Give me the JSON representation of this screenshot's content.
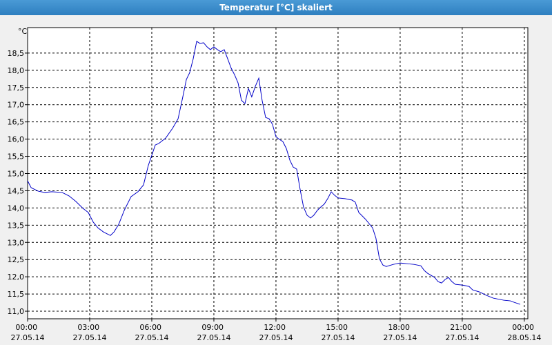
{
  "chart_data": {
    "type": "line",
    "title": "Temperatur [°C] skaliert",
    "y_label": "°C",
    "x": [
      0,
      0.17,
      0.5,
      0.83,
      1.17,
      1.67,
      2,
      2.33,
      2.67,
      2.93,
      3.17,
      3.4,
      3.67,
      4,
      4.17,
      4.4,
      4.67,
      5,
      5.33,
      5.6,
      5.83,
      6,
      6.17,
      6.33,
      6.67,
      7,
      7.27,
      7.5,
      7.67,
      7.83,
      8,
      8.17,
      8.33,
      8.5,
      8.67,
      8.83,
      9,
      9.17,
      9.33,
      9.5,
      9.67,
      9.83,
      10,
      10.17,
      10.33,
      10.5,
      10.67,
      10.83,
      11,
      11.17,
      11.33,
      11.5,
      11.67,
      11.83,
      12,
      12.17,
      12.33,
      12.5,
      12.67,
      12.83,
      13,
      13.17,
      13.33,
      13.5,
      13.67,
      13.83,
      14,
      14.17,
      14.33,
      14.5,
      14.67,
      14.83,
      15,
      15.33,
      15.67,
      15.83,
      16,
      16.33,
      16.67,
      16.83,
      17,
      17.17,
      17.33,
      17.67,
      18,
      18.33,
      18.67,
      19,
      19.17,
      19.33,
      19.67,
      19.83,
      20,
      20.17,
      20.33,
      20.5,
      20.67,
      21,
      21.33,
      21.5,
      21.83,
      22.17,
      22.5,
      23,
      23.33,
      23.5,
      23.8
    ],
    "series": [
      {
        "name": "Temperatur",
        "color": "#0000c8",
        "values": [
          14.79,
          14.59,
          14.49,
          14.45,
          14.47,
          14.45,
          14.35,
          14.19,
          13.99,
          13.87,
          13.59,
          13.42,
          13.3,
          13.2,
          13.3,
          13.52,
          13.93,
          14.33,
          14.47,
          14.67,
          15.23,
          15.53,
          15.83,
          15.87,
          16.03,
          16.31,
          16.59,
          17.23,
          17.73,
          17.93,
          18.33,
          18.84,
          18.78,
          18.8,
          18.68,
          18.6,
          18.68,
          18.6,
          18.54,
          18.6,
          18.33,
          18.07,
          17.87,
          17.63,
          17.13,
          17.03,
          17.47,
          17.23,
          17.53,
          17.77,
          17.13,
          16.63,
          16.59,
          16.43,
          16.07,
          15.99,
          15.93,
          15.73,
          15.39,
          15.19,
          15.13,
          14.53,
          14.03,
          13.79,
          13.71,
          13.79,
          13.93,
          14.03,
          14.11,
          14.27,
          14.47,
          14.37,
          14.29,
          14.27,
          14.23,
          14.17,
          13.87,
          13.67,
          13.42,
          13.12,
          12.52,
          12.34,
          12.3,
          12.36,
          12.4,
          12.38,
          12.36,
          12.32,
          12.18,
          12.1,
          11.98,
          11.86,
          11.82,
          11.92,
          11.98,
          11.86,
          11.78,
          11.76,
          11.72,
          11.62,
          11.56,
          11.46,
          11.38,
          11.32,
          11.3,
          11.26,
          11.2
        ]
      }
    ],
    "xlim": [
      0,
      24.17
    ],
    "xticks": [
      {
        "value": 0,
        "label": "00:00 27.05.14"
      },
      {
        "value": 3,
        "label": "03:00 27.05.14"
      },
      {
        "value": 6,
        "label": "06:00 27.05.14"
      },
      {
        "value": 9,
        "label": "09:00 27.05.14"
      },
      {
        "value": 12,
        "label": "12:00 27.05.14"
      },
      {
        "value": 15,
        "label": "15:00 27.05.14"
      },
      {
        "value": 18,
        "label": "18:00 27.05.14"
      },
      {
        "value": 21,
        "label": "21:00 27.05.14"
      },
      {
        "value": 24,
        "label": "00:00 28.05.14"
      }
    ],
    "ylim": [
      10.78,
      19.24
    ],
    "yticks": [
      {
        "value": 11,
        "label": "11,0"
      },
      {
        "value": 11.5,
        "label": "11,5"
      },
      {
        "value": 12,
        "label": "12,0"
      },
      {
        "value": 12.5,
        "label": "12,5"
      },
      {
        "value": 13,
        "label": "13,0"
      },
      {
        "value": 13.5,
        "label": "13,5"
      },
      {
        "value": 14,
        "label": "14,0"
      },
      {
        "value": 14.5,
        "label": "14,5"
      },
      {
        "value": 15,
        "label": "15,0"
      },
      {
        "value": 15.5,
        "label": "15,5"
      },
      {
        "value": 16,
        "label": "16,0"
      },
      {
        "value": 16.5,
        "label": "16,5"
      },
      {
        "value": 17,
        "label": "17,0"
      },
      {
        "value": 17.5,
        "label": "17,5"
      },
      {
        "value": 18,
        "label": "18,0"
      },
      {
        "value": 18.5,
        "label": "18,5"
      }
    ],
    "grid": true
  }
}
